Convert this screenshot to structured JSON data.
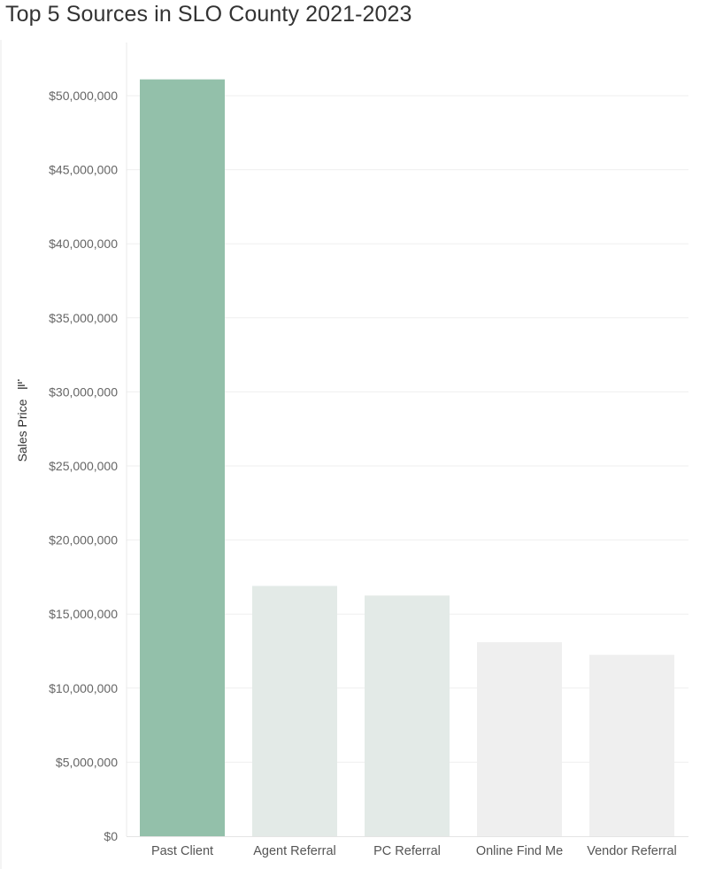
{
  "chart_data": {
    "type": "bar",
    "title": "Top 5 Sources in SLO County 2021-2023",
    "xlabel": "",
    "ylabel": "Sales Price",
    "categories": [
      "Past Client",
      "Agent Referral",
      "PC Referral",
      "Online Find Me",
      "Vendor Referral"
    ],
    "values": [
      51100000,
      16900000,
      16250000,
      13100000,
      12250000
    ],
    "bar_colors": [
      "#93c0aa",
      "#e3eae7",
      "#e3eae7",
      "#efefef",
      "#efefef"
    ],
    "ylim": [
      0,
      53000000
    ],
    "yticks": [
      0,
      5000000,
      10000000,
      15000000,
      20000000,
      25000000,
      30000000,
      35000000,
      40000000,
      45000000,
      50000000
    ],
    "ytick_labels": [
      "$0",
      "$5,000,000",
      "$10,000,000",
      "$15,000,000",
      "$20,000,000",
      "$25,000,000",
      "$30,000,000",
      "$35,000,000",
      "$40,000,000",
      "$45,000,000",
      "$50,000,000"
    ],
    "grid": true,
    "legend": "none",
    "sort_icon": "sort-descending-icon"
  }
}
